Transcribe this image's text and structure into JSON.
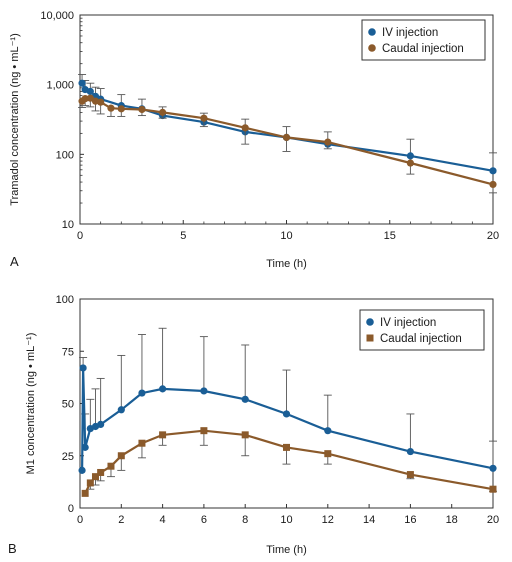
{
  "chart_data": [
    {
      "type": "line",
      "panel_label": "A",
      "xlabel": "Time (h)",
      "ylabel": "Tramadol concentration (ng • mL⁻¹)",
      "xlim": [
        0,
        20
      ],
      "ylim": [
        10,
        10000
      ],
      "yscale": "log",
      "xticks": [
        0,
        5,
        10,
        15,
        20
      ],
      "yticks": [
        10,
        100,
        1000,
        10000
      ],
      "ytick_labels": [
        "10",
        "100",
        "1,000",
        "10,000"
      ],
      "grid": false,
      "legend_position": "top-right",
      "series": [
        {
          "name": "IV injection",
          "color": "#1a5e96",
          "marker": "circle",
          "x": [
            0.1,
            0.25,
            0.5,
            0.75,
            1,
            2,
            3,
            4,
            6,
            8,
            10,
            12,
            16,
            20
          ],
          "y": [
            1050,
            850,
            800,
            680,
            620,
            500,
            450,
            360,
            290,
            210,
            175,
            140,
            95,
            58
          ],
          "error_up": [
            1400,
            1150,
            1050,
            920,
            880,
            720,
            620,
            480,
            390,
            320,
            250,
            210,
            165,
            105
          ]
        },
        {
          "name": "Caudal injection",
          "color": "#8b5a2b",
          "marker": "circle",
          "x": [
            0.1,
            0.25,
            0.5,
            0.75,
            1,
            1.5,
            2,
            3,
            4,
            6,
            8,
            10,
            12,
            16,
            20
          ],
          "y": [
            580,
            630,
            640,
            580,
            560,
            460,
            450,
            440,
            400,
            330,
            240,
            175,
            150,
            75,
            37
          ],
          "error_low": [
            470,
            500,
            480,
            420,
            380,
            350,
            350,
            360,
            330,
            250,
            140,
            110,
            120,
            52,
            28
          ]
        }
      ]
    },
    {
      "type": "line",
      "panel_label": "B",
      "xlabel": "Time (h)",
      "ylabel": "M1 concentration (ng • mL⁻¹)",
      "xlim": [
        0,
        20
      ],
      "ylim": [
        0,
        100
      ],
      "xticks": [
        0,
        2,
        4,
        6,
        8,
        10,
        12,
        14,
        16,
        18,
        20
      ],
      "yticks": [
        0,
        25,
        50,
        75,
        100
      ],
      "grid": false,
      "legend_position": "top-right",
      "series": [
        {
          "name": "IV injection",
          "color": "#1a5e96",
          "marker": "circle",
          "x": [
            0.1,
            0.15,
            0.25,
            0.5,
            0.75,
            1,
            2,
            3,
            4,
            6,
            8,
            10,
            12,
            16,
            20
          ],
          "y": [
            18,
            67,
            29,
            38,
            39,
            40,
            47,
            55,
            57,
            56,
            52,
            45,
            37,
            27,
            19
          ],
          "error_up": [
            null,
            72,
            45,
            52,
            57,
            62,
            73,
            83,
            86,
            82,
            78,
            66,
            54,
            45,
            32
          ]
        },
        {
          "name": "Caudal injection",
          "color": "#8b5a2b",
          "marker": "square",
          "x": [
            0.25,
            0.5,
            0.75,
            1,
            1.5,
            2,
            3,
            4,
            6,
            8,
            10,
            12,
            16,
            20
          ],
          "y": [
            7,
            12,
            15,
            17,
            20,
            25,
            31,
            35,
            37,
            35,
            29,
            26,
            16,
            9
          ],
          "error_low": [
            null,
            9,
            11,
            13,
            15,
            18,
            24,
            30,
            30,
            25,
            21,
            21,
            14,
            8
          ]
        }
      ]
    }
  ]
}
